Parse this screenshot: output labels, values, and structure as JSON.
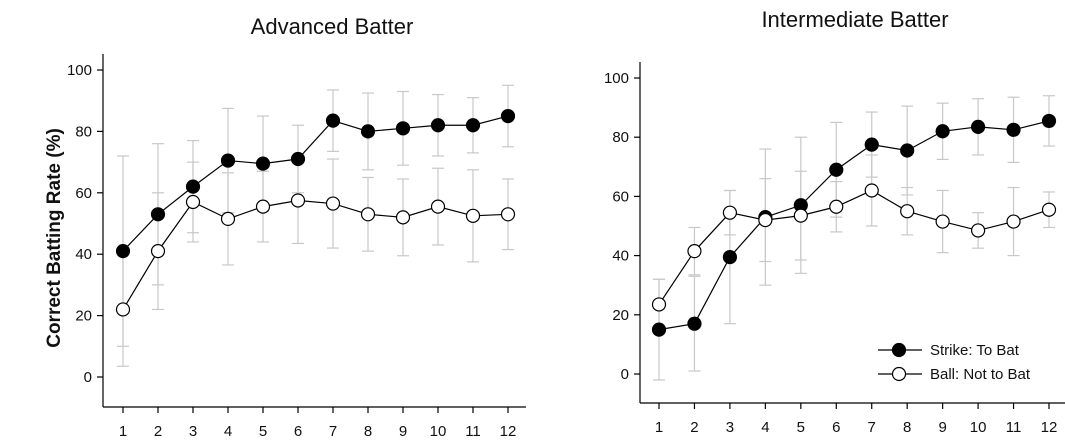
{
  "chart_data": [
    {
      "type": "line",
      "title": "Advanced Batter",
      "ylabel": "Correct Batting Rate (%)",
      "xlabel": "",
      "x": [
        1,
        2,
        3,
        4,
        5,
        6,
        7,
        8,
        9,
        10,
        11,
        12
      ],
      "ylim": [
        0,
        100
      ],
      "yticks": [
        0,
        20,
        40,
        60,
        80,
        100
      ],
      "series": [
        {
          "name": "Strike: To Bat",
          "marker": "filled-circle",
          "values": [
            41,
            53,
            62,
            70.5,
            69.5,
            71,
            83.5,
            80,
            81,
            82,
            82,
            85
          ],
          "err": [
            31,
            23,
            15,
            17,
            15.5,
            11,
            10,
            12.5,
            12,
            10,
            9,
            10
          ]
        },
        {
          "name": "Ball: Not to Bat",
          "marker": "open-circle",
          "values": [
            22,
            41,
            57,
            51.5,
            55.5,
            57.5,
            56.5,
            53,
            52,
            55.5,
            52.5,
            53
          ],
          "err": [
            18.5,
            19,
            13,
            15,
            11.5,
            14,
            14.5,
            12,
            12.5,
            12.5,
            15,
            11.5
          ]
        }
      ],
      "grid": false,
      "legend": null
    },
    {
      "type": "line",
      "title": "Intermediate Batter",
      "ylabel": "",
      "xlabel": "",
      "x": [
        1,
        2,
        3,
        4,
        5,
        6,
        7,
        8,
        9,
        10,
        11,
        12
      ],
      "ylim": [
        0,
        100
      ],
      "yticks": [
        0,
        20,
        40,
        60,
        80,
        100
      ],
      "series": [
        {
          "name": "Strike: To Bat",
          "marker": "filled-circle",
          "values": [
            15,
            17,
            39.5,
            53,
            57,
            69,
            77.5,
            75.5,
            82,
            83.5,
            82.5,
            85.5
          ],
          "err": [
            17,
            16,
            22.5,
            23,
            23,
            16,
            11,
            15,
            9.5,
            9.5,
            11,
            8.5
          ]
        },
        {
          "name": "Ball: Not to Bat",
          "marker": "open-circle",
          "values": [
            23.5,
            41.5,
            54.5,
            52,
            53.5,
            56.5,
            62,
            55,
            51.5,
            48.5,
            51.5,
            55.5
          ],
          "err": [
            8.5,
            8,
            7.5,
            14,
            15,
            8.5,
            12,
            8,
            10.5,
            6,
            11.5,
            6
          ]
        }
      ],
      "grid": false,
      "legend": "bottom-right",
      "legend_entries": [
        "Strike: To Bat",
        "Ball: Not to Bat"
      ]
    }
  ]
}
